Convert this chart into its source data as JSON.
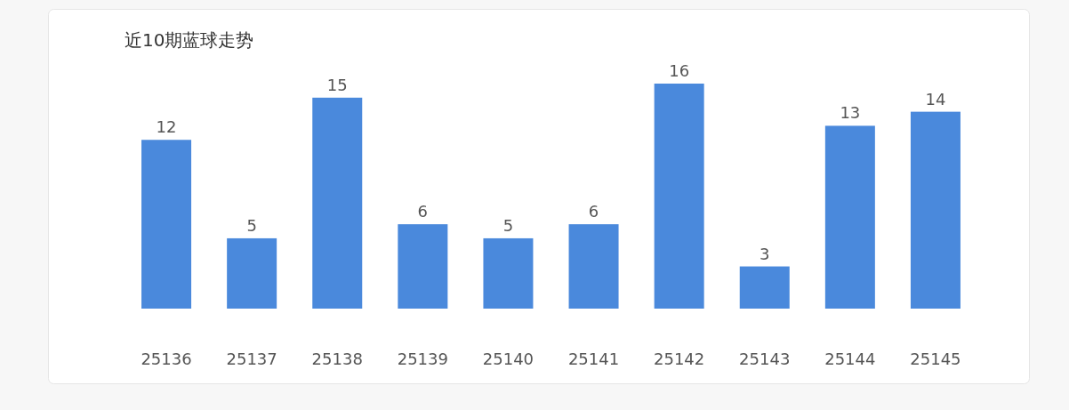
{
  "chart_data": {
    "type": "bar",
    "title": "近10期蓝球走势",
    "categories": [
      "25136",
      "25137",
      "25138",
      "25139",
      "25140",
      "25141",
      "25142",
      "25143",
      "25144",
      "25145"
    ],
    "values": [
      12,
      5,
      15,
      6,
      5,
      6,
      16,
      3,
      13,
      14
    ],
    "color": "#4a89dc",
    "data_labels": true
  }
}
